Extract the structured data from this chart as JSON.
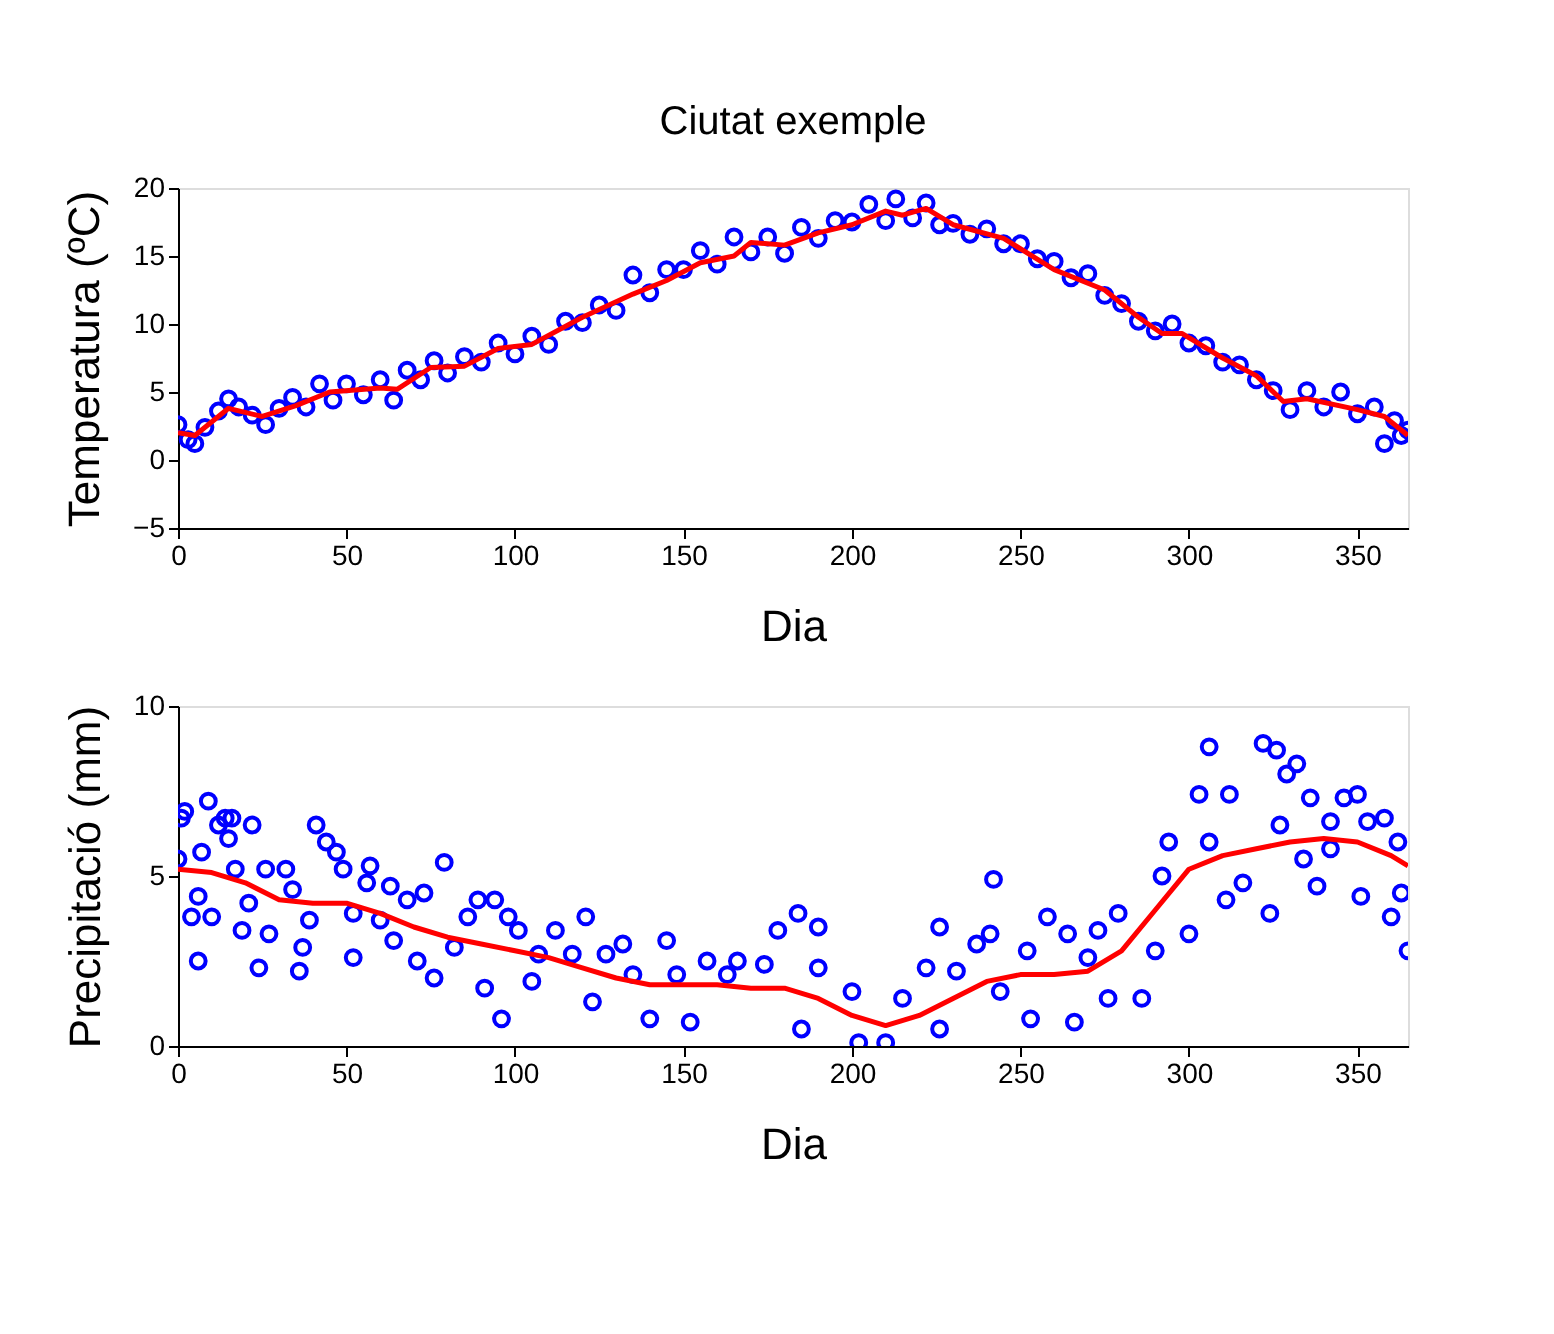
{
  "chart_data": [
    {
      "type": "scatter",
      "title": "Ciutat exemple",
      "xlabel": "Dia",
      "ylabel": "Temperatura (ºC)",
      "xlim": [
        0,
        365
      ],
      "xticks": [
        0,
        50,
        100,
        150,
        200,
        250,
        300,
        350
      ],
      "ylim": [
        -5,
        20
      ],
      "yticks": [
        -5,
        0,
        5,
        10,
        15,
        20
      ],
      "grid": false,
      "series": [
        {
          "marker": "circle",
          "color": "#0000ff",
          "x": [
            0,
            3,
            5,
            8,
            12,
            15,
            18,
            22,
            26,
            30,
            34,
            38,
            42,
            46,
            50,
            55,
            60,
            64,
            68,
            72,
            76,
            80,
            85,
            90,
            95,
            100,
            105,
            110,
            115,
            120,
            125,
            130,
            135,
            140,
            145,
            150,
            155,
            160,
            165,
            170,
            175,
            180,
            185,
            190,
            195,
            200,
            205,
            210,
            213,
            218,
            222,
            226,
            230,
            235,
            240,
            245,
            250,
            255,
            260,
            265,
            270,
            275,
            280,
            285,
            290,
            295,
            300,
            305,
            310,
            315,
            320,
            325,
            330,
            335,
            340,
            345,
            350,
            355,
            358,
            361,
            363,
            365
          ],
          "values": [
            2.6,
            1.5,
            1.2,
            2.4,
            3.6,
            4.5,
            3.9,
            3.3,
            2.6,
            3.8,
            4.6,
            3.9,
            5.6,
            4.4,
            5.6,
            4.8,
            5.9,
            4.4,
            6.6,
            5.9,
            7.3,
            6.4,
            7.6,
            7.2,
            8.6,
            7.8,
            9.1,
            8.5,
            10.2,
            10.1,
            11.4,
            11.0,
            13.6,
            12.3,
            14.0,
            14.0,
            15.4,
            14.4,
            16.4,
            15.3,
            16.4,
            15.2,
            17.1,
            16.3,
            17.6,
            17.5,
            18.8,
            17.6,
            19.2,
            17.8,
            18.9,
            17.3,
            17.4,
            16.6,
            17.0,
            15.9,
            15.9,
            14.8,
            14.6,
            13.4,
            13.7,
            12.1,
            11.5,
            10.2,
            9.5,
            10.0,
            8.6,
            8.4,
            7.2,
            7.0,
            5.9,
            5.1,
            3.7,
            5.1,
            3.9,
            5.0,
            3.4,
            3.9,
            1.2,
            2.9,
            1.8,
            2.2
          ]
        },
        {
          "type": "line",
          "color": "#ff0000",
          "x": [
            0,
            5,
            15,
            25,
            35,
            45,
            60,
            65,
            75,
            85,
            95,
            105,
            120,
            135,
            145,
            155,
            165,
            170,
            180,
            190,
            200,
            210,
            215,
            222,
            230,
            245,
            260,
            275,
            285,
            292,
            298,
            310,
            320,
            328,
            335,
            350,
            358,
            365
          ],
          "values": [
            2,
            1.8,
            3.8,
            3.2,
            4,
            5,
            5.3,
            5.2,
            6.8,
            6.9,
            8.2,
            8.5,
            10.5,
            12.2,
            13.2,
            14.5,
            15,
            16,
            15.8,
            16.7,
            17.3,
            18.3,
            18,
            18.5,
            17.3,
            16.3,
            14,
            12.5,
            10.5,
            9.3,
            9.3,
            7.5,
            6.2,
            4.3,
            4.5,
            3.7,
            3.2,
            1.8
          ]
        }
      ]
    },
    {
      "type": "scatter",
      "xlabel": "Dia",
      "ylabel": "Precipitació  (mm)",
      "xlim": [
        0,
        365
      ],
      "xticks": [
        0,
        50,
        100,
        150,
        200,
        250,
        300,
        350
      ],
      "ylim": [
        0,
        10
      ],
      "yticks": [
        0,
        5,
        10
      ],
      "grid": false,
      "series": [
        {
          "marker": "circle",
          "color": "#0000ff",
          "x": [
            0,
            1,
            2,
            4,
            6,
            6,
            7,
            9,
            10,
            12,
            14,
            15,
            16,
            17,
            19,
            21,
            22,
            24,
            26,
            27,
            32,
            34,
            36,
            37,
            39,
            41,
            44,
            47,
            49,
            52,
            52,
            56,
            57,
            60,
            63,
            64,
            68,
            71,
            73,
            76,
            79,
            82,
            86,
            89,
            91,
            94,
            96,
            98,
            101,
            105,
            107,
            112,
            117,
            121,
            123,
            127,
            132,
            135,
            140,
            145,
            148,
            152,
            157,
            163,
            166,
            174,
            178,
            184,
            190,
            185,
            190,
            200,
            202,
            210,
            215,
            222,
            226,
            226,
            231,
            237,
            241,
            242,
            244,
            252,
            253,
            258,
            264,
            266,
            270,
            273,
            276,
            279,
            286,
            290,
            294,
            292,
            300,
            303,
            306,
            306,
            312,
            311,
            316,
            322,
            326,
            329,
            332,
            327,
            324,
            336,
            338,
            342,
            346,
            350,
            351,
            353,
            358,
            360,
            362,
            363,
            365,
            342,
            334
          ],
          "values": [
            5.5,
            6.7,
            6.9,
            3.8,
            2.5,
            4.4,
            5.7,
            7.2,
            3.8,
            6.5,
            6.7,
            6.1,
            6.7,
            5.2,
            3.4,
            4.2,
            6.5,
            2.3,
            5.2,
            3.3,
            5.2,
            4.6,
            2.2,
            2.9,
            3.7,
            6.5,
            6.0,
            5.7,
            5.2,
            2.6,
            3.9,
            4.8,
            5.3,
            3.7,
            4.7,
            3.1,
            4.3,
            2.5,
            4.5,
            2.0,
            5.4,
            2.9,
            3.8,
            4.3,
            1.7,
            4.3,
            0.8,
            3.8,
            3.4,
            1.9,
            2.7,
            3.4,
            2.7,
            3.8,
            1.3,
            2.7,
            3.0,
            2.1,
            0.8,
            3.1,
            2.1,
            0.7,
            2.5,
            2.1,
            2.5,
            2.4,
            3.4,
            3.9,
            3.5,
            0.5,
            2.3,
            1.6,
            0.1,
            0.1,
            1.4,
            2.3,
            3.5,
            0.5,
            2.2,
            3.0,
            3.3,
            4.9,
            1.6,
            2.8,
            0.8,
            3.8,
            3.3,
            0.7,
            2.6,
            3.4,
            1.4,
            3.9,
            1.4,
            2.8,
            6.0,
            5.0,
            3.3,
            7.4,
            8.8,
            6.0,
            7.4,
            4.3,
            4.8,
            8.9,
            8.7,
            8.0,
            8.3,
            6.5,
            3.9,
            7.3,
            4.7,
            5.8,
            7.3,
            7.4,
            4.4,
            6.6,
            6.7,
            3.8,
            6.0,
            4.5,
            2.8,
            6.6,
            5.5
          ]
        },
        {
          "type": "line",
          "color": "#ff0000",
          "x": [
            0,
            10,
            20,
            30,
            40,
            50,
            60,
            70,
            80,
            90,
            100,
            110,
            120,
            130,
            140,
            150,
            160,
            170,
            180,
            190,
            200,
            210,
            220,
            230,
            240,
            250,
            260,
            270,
            280,
            290,
            300,
            310,
            320,
            330,
            340,
            350,
            360,
            365
          ],
          "values": [
            5.2,
            5.1,
            4.8,
            4.3,
            4.2,
            4.2,
            3.9,
            3.5,
            3.2,
            3.0,
            2.8,
            2.6,
            2.3,
            2.0,
            1.8,
            1.8,
            1.8,
            1.7,
            1.7,
            1.4,
            0.9,
            0.6,
            0.9,
            1.4,
            1.9,
            2.1,
            2.1,
            2.2,
            2.8,
            4.0,
            5.2,
            5.6,
            5.8,
            6.0,
            6.1,
            6.0,
            5.6,
            5.3
          ]
        }
      ]
    }
  ]
}
